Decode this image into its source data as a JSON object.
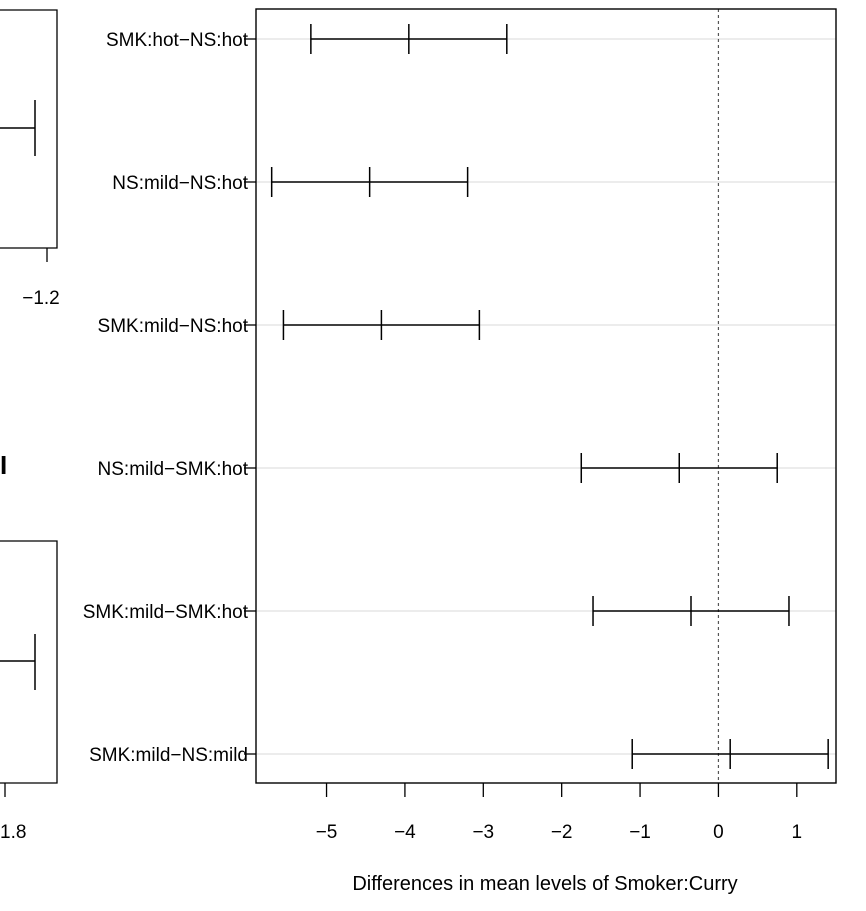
{
  "chart_data": {
    "type": "errorbar",
    "orientation": "horizontal",
    "xlabel": "Differences in mean levels of Smoker:Curry",
    "xlim": [
      -5.9,
      1.5
    ],
    "xticks": [
      -5,
      -4,
      -3,
      -2,
      -1,
      0,
      1
    ],
    "xtick_labels": [
      "−5",
      "−4",
      "−3",
      "−2",
      "−1",
      "0",
      "1"
    ],
    "reference_line": 0,
    "grid": "horizontal",
    "comparisons": [
      {
        "label": "SMK:hot−NS:hot",
        "lower": -5.2,
        "diff": -3.95,
        "upper": -2.7
      },
      {
        "label": "NS:mild−NS:hot",
        "lower": -5.7,
        "diff": -4.45,
        "upper": -3.2
      },
      {
        "label": "SMK:mild−NS:hot",
        "lower": -5.55,
        "diff": -4.3,
        "upper": -3.05
      },
      {
        "label": "NS:mild−SMK:hot",
        "lower": -1.75,
        "diff": -0.5,
        "upper": 0.75
      },
      {
        "label": "SMK:mild−SMK:hot",
        "lower": -1.6,
        "diff": -0.35,
        "upper": 0.9
      },
      {
        "label": "SMK:mild−NS:mild",
        "lower": -1.1,
        "diff": 0.15,
        "upper": 1.4
      }
    ]
  },
  "background_panels": {
    "upper_tick_label": "−1.2",
    "lower_tick_label": "1.8",
    "stray_glyph": "I"
  }
}
